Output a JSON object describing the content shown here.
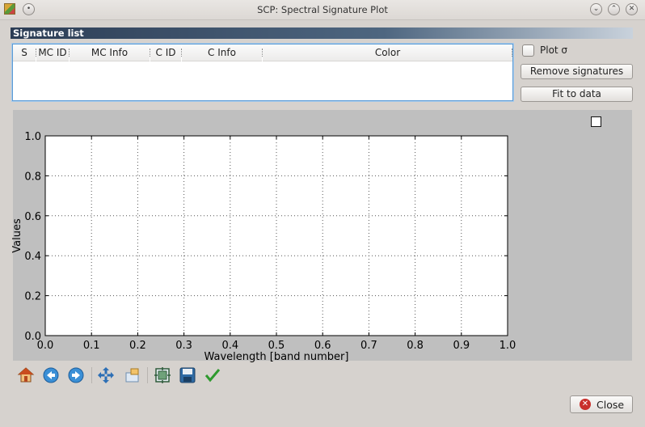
{
  "window": {
    "title": "SCP: Spectral Signature Plot",
    "controls": [
      "minimize-icon",
      "maximize-icon",
      "close-icon"
    ]
  },
  "signature_list": {
    "header": "Signature list",
    "columns": [
      "S",
      "MC ID",
      "MC Info",
      "C ID",
      "C Info",
      "Color"
    ],
    "rows": []
  },
  "side_panel": {
    "plot_sigma_label": "Plot σ",
    "plot_sigma_checked": false,
    "remove_signatures_label": "Remove signatures",
    "fit_to_data_label": "Fit to data"
  },
  "chart_data": {
    "type": "line",
    "series": [],
    "xlabel": "Wavelength [band number]",
    "ylabel": "Values",
    "xlim": [
      0.0,
      1.0
    ],
    "ylim": [
      0.0,
      1.0
    ],
    "x_ticks": [
      "0.0",
      "0.1",
      "0.2",
      "0.3",
      "0.4",
      "0.5",
      "0.6",
      "0.7",
      "0.8",
      "0.9",
      "1.0"
    ],
    "y_ticks": [
      "0.0",
      "0.2",
      "0.4",
      "0.6",
      "0.8",
      "1.0"
    ],
    "grid": true,
    "legend_checkbox_checked": false,
    "plot_background": "#ffffff",
    "panel_background": "#bfbfbf"
  },
  "toolbar": {
    "tools": [
      "home-icon",
      "back-icon",
      "forward-icon",
      "pan-icon",
      "zoom-icon",
      "subplots-icon",
      "save-icon",
      "edit-check-icon"
    ]
  },
  "footer": {
    "close_label": "Close"
  }
}
